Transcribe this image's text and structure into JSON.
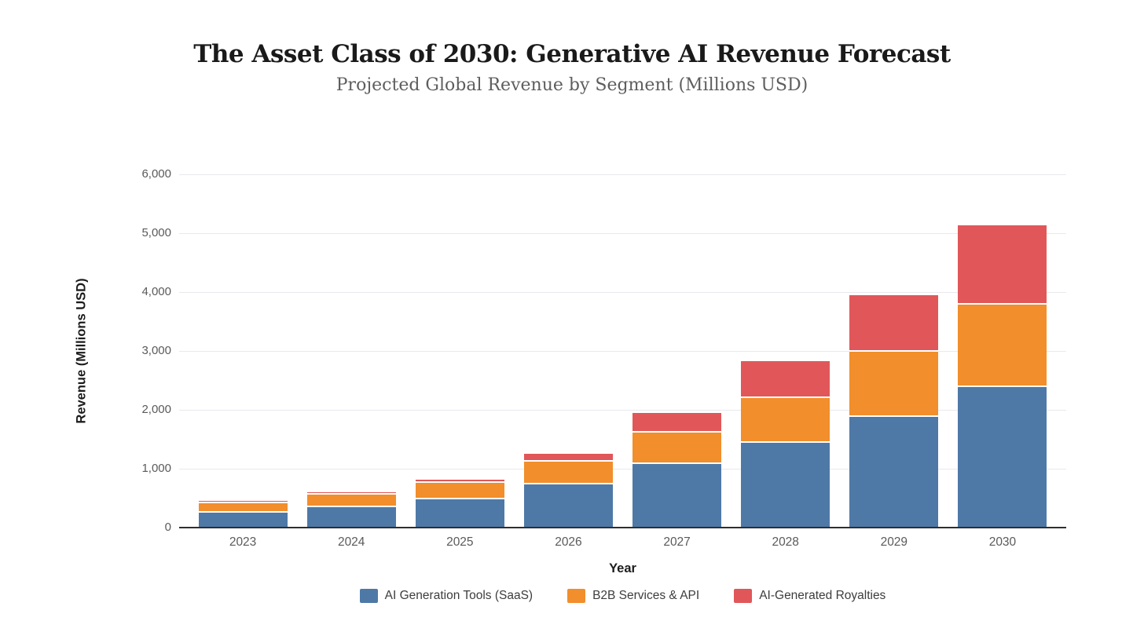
{
  "chart_data": {
    "type": "bar",
    "stacked": true,
    "title": "The Asset Class of 2030: Generative AI Revenue Forecast",
    "subtitle": "Projected Global Revenue by Segment (Millions USD)",
    "xlabel": "Year",
    "ylabel": "Revenue (Millions USD)",
    "categories": [
      "2023",
      "2024",
      "2025",
      "2026",
      "2027",
      "2028",
      "2029",
      "2030"
    ],
    "series": [
      {
        "name": "AI Generation Tools (SaaS)",
        "color": "#4e79a7",
        "values": [
          270,
          360,
          490,
          750,
          1090,
          1450,
          1900,
          2400
        ]
      },
      {
        "name": "B2B Services & API",
        "color": "#f28e2b",
        "values": [
          160,
          210,
          280,
          380,
          540,
          770,
          1100,
          1400
        ]
      },
      {
        "name": "AI-Generated Royalties",
        "color": "#e15759",
        "values": [
          20,
          30,
          50,
          120,
          320,
          610,
          950,
          1340
        ]
      }
    ],
    "stack_totals": [
      450,
      600,
      820,
      1250,
      1950,
      2830,
      3950,
      5140
    ],
    "ylim": [
      0,
      6000
    ],
    "ytick_step": 1000,
    "ytick_labels": [
      "0",
      "1,000",
      "2,000",
      "3,000",
      "4,000",
      "5,000",
      "6,000"
    ],
    "grid": "horizontal",
    "legend_position": "bottom"
  },
  "colors": {
    "background": "#ffffff",
    "grid": "#e9e9ef",
    "axis_line": "#2f2f2f",
    "tick_label": "#5a5a5a",
    "axis_title": "#1c1c1c",
    "legend_text": "#3d3d3d",
    "title": "#1a1a1a",
    "subtitle": "#5e5e5e"
  }
}
